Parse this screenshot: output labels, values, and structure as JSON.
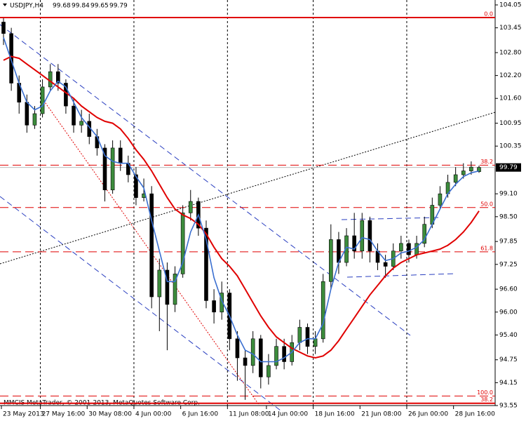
{
  "chart_data": {
    "type": "candlestick",
    "title": "USDJPY,H4",
    "footer": "MMCIS MetaTrader, © 2001-2013, MetaQuotes Software Corp.",
    "categories": [
      "23 May 2013",
      null,
      null,
      null,
      null,
      "27 May 16:00",
      null,
      null,
      null,
      null,
      null,
      "30 May 08:00",
      null,
      null,
      null,
      null,
      null,
      "4 Jun 00:00",
      null,
      null,
      null,
      null,
      null,
      "6 Jun 16:00",
      null,
      null,
      null,
      null,
      null,
      "11 Jun 08:00",
      null,
      null,
      null,
      null,
      "14 Jun 00:00",
      null,
      null,
      null,
      null,
      null,
      "18 Jun 16:00",
      null,
      null,
      null,
      null,
      null,
      "21 Jun 08:00",
      null,
      null,
      null,
      null,
      null,
      "26 Jun 00:00",
      null,
      null,
      null,
      null,
      null,
      "28 Jun 16:00",
      null,
      null,
      null
    ],
    "open": [
      103.6,
      103.3,
      102.0,
      101.5,
      100.9,
      101.2,
      101.9,
      102.3,
      102.0,
      101.4,
      100.9,
      101.0,
      100.6,
      100.3,
      99.2,
      100.3,
      99.9,
      99.6,
      99.0,
      99.1,
      96.4,
      97.1,
      96.2,
      97.0,
      98.6,
      98.9,
      98.2,
      96.3,
      96.0,
      96.5,
      95.3,
      94.8,
      94.6,
      95.3,
      94.3,
      94.6,
      95.1,
      94.7,
      95.2,
      95.6,
      95.1,
      95.3,
      96.8,
      97.9,
      97.3,
      98.0,
      97.6,
      98.4,
      97.6,
      97.3,
      97.2,
      97.6,
      97.8,
      97.5,
      97.8,
      98.3,
      98.8,
      99.1,
      99.4,
      99.6,
      99.7,
      99.68
    ],
    "high": [
      103.7,
      103.45,
      102.2,
      101.7,
      101.4,
      102.1,
      102.5,
      102.5,
      102.1,
      101.6,
      101.3,
      101.2,
      100.8,
      100.4,
      100.5,
      100.5,
      100.1,
      99.8,
      99.5,
      99.3,
      97.4,
      97.3,
      97.2,
      98.8,
      99.2,
      99.0,
      98.4,
      96.6,
      96.8,
      96.6,
      95.5,
      95.0,
      95.5,
      95.4,
      94.9,
      95.3,
      95.3,
      95.4,
      95.8,
      95.7,
      95.5,
      97.0,
      98.3,
      98.1,
      98.2,
      98.6,
      98.6,
      98.5,
      97.8,
      97.5,
      97.8,
      98.0,
      97.9,
      98.0,
      98.5,
      99.0,
      99.3,
      99.6,
      99.8,
      99.9,
      99.95,
      99.84
    ],
    "low": [
      103.0,
      101.8,
      101.2,
      100.7,
      100.8,
      101.1,
      101.8,
      101.8,
      101.2,
      100.7,
      100.7,
      100.4,
      100.1,
      98.9,
      99.1,
      99.7,
      99.4,
      98.8,
      98.9,
      96.1,
      95.5,
      95.0,
      96.0,
      96.9,
      98.4,
      98.0,
      96.1,
      95.7,
      95.8,
      95.0,
      94.2,
      93.7,
      94.4,
      94.0,
      94.1,
      94.5,
      94.5,
      94.6,
      95.0,
      94.9,
      94.9,
      95.2,
      96.6,
      97.0,
      97.2,
      97.4,
      97.4,
      97.3,
      97.1,
      96.9,
      97.1,
      97.4,
      97.3,
      97.4,
      97.7,
      98.2,
      98.7,
      99.0,
      99.3,
      99.5,
      99.6,
      99.65
    ],
    "close": [
      103.3,
      102.0,
      101.5,
      100.9,
      101.2,
      101.9,
      102.3,
      102.0,
      101.4,
      100.9,
      101.0,
      100.6,
      100.3,
      99.2,
      100.3,
      99.9,
      99.6,
      99.0,
      99.1,
      96.4,
      97.1,
      96.2,
      97.0,
      98.6,
      98.9,
      98.2,
      96.3,
      96.0,
      96.5,
      95.3,
      94.8,
      94.6,
      95.3,
      94.3,
      94.6,
      95.1,
      94.7,
      95.2,
      95.6,
      95.1,
      95.3,
      96.8,
      97.9,
      97.3,
      98.0,
      97.6,
      98.4,
      97.6,
      97.3,
      97.2,
      97.6,
      97.8,
      97.5,
      97.8,
      98.3,
      98.8,
      99.1,
      99.4,
      99.6,
      99.7,
      99.8,
      99.79
    ],
    "up_color": "#3c8c3c",
    "down_color": "#000000",
    "series": [
      {
        "color": "#e00000",
        "values": [
          102.6,
          102.7,
          102.65,
          102.5,
          102.35,
          102.2,
          102.05,
          101.9,
          101.75,
          101.6,
          101.4,
          101.25,
          101.1,
          101.0,
          100.95,
          100.8,
          100.55,
          100.25,
          100.0,
          99.7,
          99.35,
          99.0,
          98.7,
          98.55,
          98.45,
          98.3,
          98.05,
          97.7,
          97.4,
          97.2,
          96.95,
          96.6,
          96.25,
          95.9,
          95.6,
          95.35,
          95.2,
          95.05,
          94.95,
          94.85,
          94.8,
          94.85,
          95.0,
          95.25,
          95.55,
          95.85,
          96.15,
          96.45,
          96.7,
          96.95,
          97.15,
          97.3,
          97.4,
          97.5,
          97.55,
          97.6,
          97.65,
          97.75,
          97.9,
          98.1,
          98.35,
          98.65
        ]
      },
      {
        "color": "#3a6fd0",
        "values": [
          103.2,
          102.6,
          102.0,
          101.5,
          101.3,
          101.4,
          101.8,
          102.05,
          101.9,
          101.5,
          101.1,
          100.85,
          100.6,
          100.1,
          99.95,
          99.9,
          99.9,
          99.55,
          99.25,
          98.4,
          97.6,
          96.8,
          96.8,
          97.3,
          98.1,
          98.55,
          97.9,
          96.9,
          96.3,
          95.9,
          95.4,
          95.0,
          94.9,
          94.7,
          94.7,
          94.7,
          94.8,
          94.95,
          95.2,
          95.3,
          95.3,
          95.7,
          96.6,
          97.3,
          97.7,
          97.65,
          97.95,
          97.9,
          97.6,
          97.35,
          97.4,
          97.55,
          97.6,
          97.7,
          97.9,
          98.3,
          98.7,
          99.1,
          99.35,
          99.55,
          99.65,
          99.7
        ]
      }
    ],
    "fib_levels": [
      {
        "label": "0.0",
        "price": 103.72,
        "style": "solid"
      },
      {
        "label": "38.2",
        "price": 99.85,
        "style": "dashed"
      },
      {
        "label": "50.0",
        "price": 98.74,
        "style": "dashed"
      },
      {
        "label": "61.8",
        "price": 97.58,
        "style": "dashed"
      },
      {
        "label": "100.0",
        "price": 93.8,
        "style": "dashed"
      },
      {
        "label": "38.2",
        "price": 93.61,
        "style": "solid"
      }
    ],
    "ylim": [
      93.55,
      104.05
    ],
    "yticks": [
      {
        "value": 104.05,
        "label": "104.05"
      },
      103.45,
      {
        "value": 102.8,
        "label": "102.80"
      },
      {
        "value": 102.2,
        "label": "102.20"
      },
      {
        "value": 101.6,
        "label": "101.60"
      },
      100.95,
      100.35,
      {
        "value": 99.1,
        "label": "99.10"
      },
      {
        "value": 98.5,
        "label": "98.50"
      },
      97.85,
      97.25,
      {
        "value": 96.6,
        "label": "96.60"
      },
      {
        "value": 96.0,
        "label": "96.00"
      },
      {
        "value": 95.4,
        "label": "95.40"
      },
      94.75,
      94.15,
      93.55
    ]
  }
}
